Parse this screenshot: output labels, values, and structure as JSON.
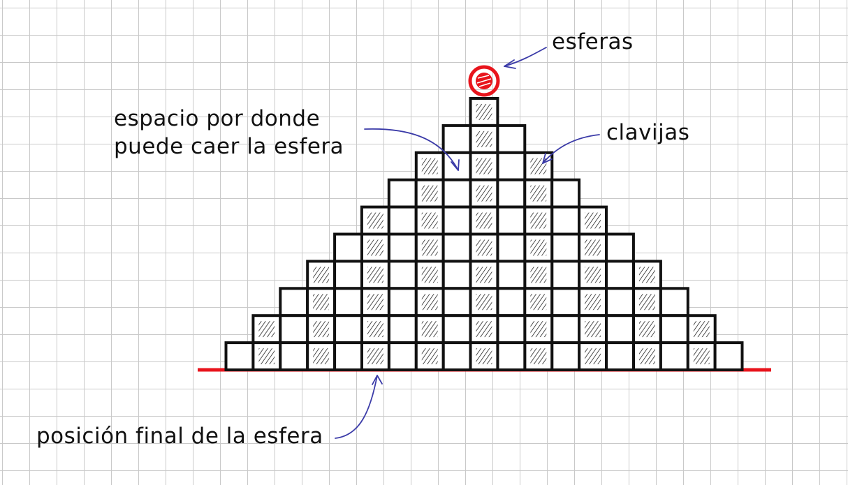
{
  "labels": {
    "spheres": "esferas",
    "space_line1": "espacio por donde",
    "space_line2": "puede caer la esfera",
    "pegs": "clavijas",
    "final_position": "posición final de la esfera"
  },
  "board": {
    "rows": 10,
    "outline_color": "#111111",
    "peg_hatch_color": "#222222",
    "base_line_color": "#e8141c",
    "arrow_color": "#3b3ba8",
    "ball_color": "#e8141c"
  }
}
